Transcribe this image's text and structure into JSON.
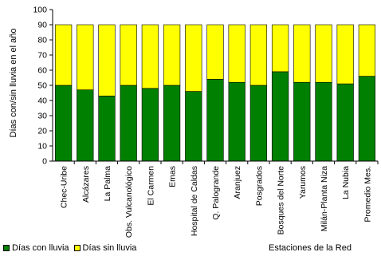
{
  "chart_data": {
    "type": "bar",
    "stacked": true,
    "xlabel": "Estaciones de la Red",
    "ylabel": "Días con/sin lluvia en el año",
    "ylim": [
      0,
      100
    ],
    "yticks": [
      0,
      10,
      20,
      30,
      40,
      50,
      60,
      70,
      80,
      90,
      100
    ],
    "grid": false,
    "legend_position": "bottom-left",
    "categories": [
      "Chec-Uribe",
      "Alcázares",
      "La Palma",
      "Obs. Vulcanológico",
      "El Carmen",
      "Emas",
      "Hospital de Caldas",
      "Q. Palogrande",
      "Aranjuez",
      "Posgrados",
      "Bosques del Norte",
      "Yarumos",
      "Milán-Planta Niza",
      "La Nubia",
      "Promedio Mes."
    ],
    "series": [
      {
        "name": "Días con lluvia",
        "color": "#008000",
        "values": [
          50,
          47,
          43,
          50,
          48,
          50,
          46,
          54,
          52,
          50,
          59,
          52,
          52,
          51,
          56
        ]
      },
      {
        "name": "Días sin lluvia",
        "color": "#ffff00",
        "values": [
          40,
          43,
          47,
          40,
          42,
          40,
          44,
          36,
          38,
          40,
          31,
          38,
          38,
          39,
          34
        ]
      }
    ]
  }
}
